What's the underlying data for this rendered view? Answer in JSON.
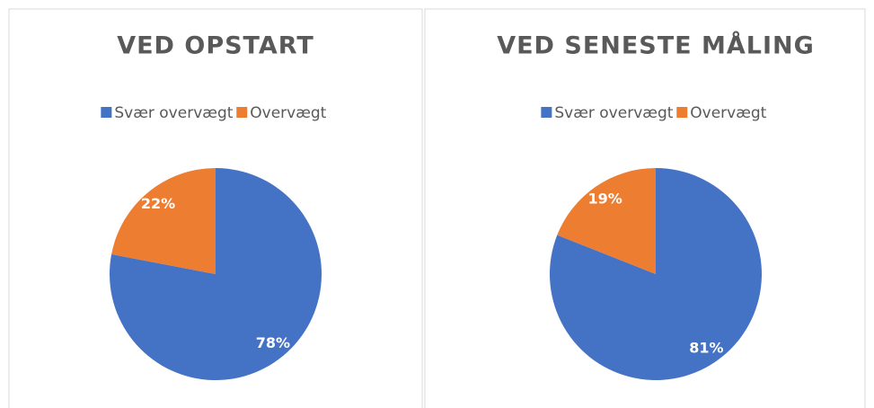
{
  "chart_data": [
    {
      "type": "pie",
      "title": "VED OPSTART",
      "categories": [
        "Svær overvægt",
        "Overvægt"
      ],
      "values": [
        78,
        22
      ],
      "value_labels": [
        "78%",
        "22%"
      ],
      "colors": [
        "#4472c4",
        "#ed7d31"
      ]
    },
    {
      "type": "pie",
      "title": "VED SENESTE MÅLING",
      "categories": [
        "Svær overvægt",
        "Overvægt"
      ],
      "values": [
        81,
        19
      ],
      "value_labels": [
        "81%",
        "19%"
      ],
      "colors": [
        "#4472c4",
        "#ed7d31"
      ]
    }
  ]
}
